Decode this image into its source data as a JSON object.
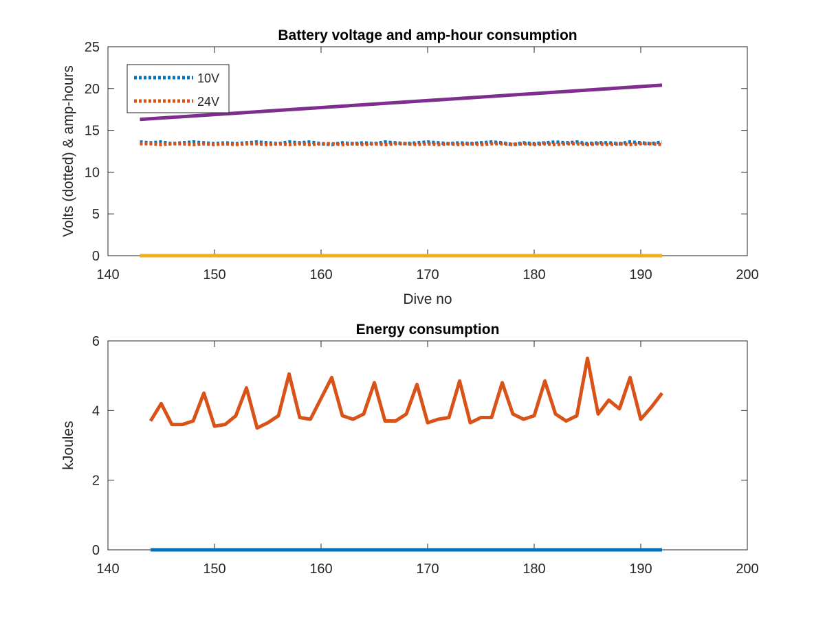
{
  "figure": {
    "background": "#ffffff"
  },
  "chart_data": [
    {
      "type": "line",
      "title": "Battery voltage and amp-hour consumption",
      "xlabel": "Dive no",
      "ylabel": "Volts (dotted) & amp-hours",
      "xlim": [
        140,
        200
      ],
      "ylim": [
        0,
        25
      ],
      "xticks": [
        140,
        150,
        160,
        170,
        180,
        190,
        200
      ],
      "yticks": [
        0,
        5,
        10,
        15,
        20,
        25
      ],
      "grid": false,
      "legend": {
        "placement": "top-left",
        "entries": [
          "10V",
          "24V"
        ]
      },
      "series": [
        {
          "name": "10V",
          "color": "#0072BD",
          "style": "dotted",
          "x": [
            143,
            144,
            145,
            146,
            147,
            148,
            149,
            150,
            151,
            152,
            153,
            154,
            155,
            156,
            157,
            158,
            159,
            160,
            161,
            162,
            163,
            164,
            165,
            166,
            167,
            168,
            169,
            170,
            171,
            172,
            173,
            174,
            175,
            176,
            177,
            178,
            179,
            180,
            181,
            182,
            183,
            184,
            185,
            186,
            187,
            188,
            189,
            190,
            191,
            192
          ],
          "y": [
            13.6,
            13.5,
            13.6,
            13.4,
            13.5,
            13.6,
            13.5,
            13.4,
            13.5,
            13.4,
            13.5,
            13.6,
            13.5,
            13.4,
            13.6,
            13.5,
            13.6,
            13.4,
            13.3,
            13.5,
            13.4,
            13.5,
            13.4,
            13.6,
            13.5,
            13.4,
            13.5,
            13.6,
            13.5,
            13.4,
            13.5,
            13.4,
            13.5,
            13.6,
            13.5,
            13.3,
            13.5,
            13.4,
            13.5,
            13.6,
            13.5,
            13.6,
            13.4,
            13.5,
            13.5,
            13.4,
            13.6,
            13.5,
            13.4,
            13.6
          ]
        },
        {
          "name": "24V",
          "color": "#D95319",
          "style": "dotted",
          "x": [
            143,
            144,
            145,
            146,
            147,
            148,
            149,
            150,
            151,
            152,
            153,
            154,
            155,
            156,
            157,
            158,
            159,
            160,
            161,
            162,
            163,
            164,
            165,
            166,
            167,
            168,
            169,
            170,
            171,
            172,
            173,
            174,
            175,
            176,
            177,
            178,
            179,
            180,
            181,
            182,
            183,
            184,
            185,
            186,
            187,
            188,
            189,
            190,
            191,
            192
          ],
          "y": [
            13.4,
            13.4,
            13.3,
            13.4,
            13.4,
            13.3,
            13.4,
            13.3,
            13.4,
            13.3,
            13.4,
            13.4,
            13.3,
            13.4,
            13.3,
            13.4,
            13.3,
            13.4,
            13.4,
            13.3,
            13.4,
            13.3,
            13.4,
            13.3,
            13.4,
            13.4,
            13.3,
            13.4,
            13.3,
            13.4,
            13.3,
            13.4,
            13.3,
            13.4,
            13.4,
            13.3,
            13.4,
            13.3,
            13.4,
            13.3,
            13.4,
            13.4,
            13.3,
            13.4,
            13.3,
            13.4,
            13.3,
            13.4,
            13.4,
            13.3
          ]
        },
        {
          "color": "#EDB120",
          "style": "solid",
          "x": [
            143,
            192
          ],
          "y": [
            0,
            0
          ]
        },
        {
          "color": "#7E2F8E",
          "style": "solid",
          "x": [
            143,
            192
          ],
          "y": [
            16.3,
            20.4
          ]
        }
      ]
    },
    {
      "type": "line",
      "title": "Energy consumption",
      "xlabel": "",
      "ylabel": "kJoules",
      "xlim": [
        140,
        200
      ],
      "ylim": [
        0,
        6
      ],
      "xticks": [
        140,
        150,
        160,
        170,
        180,
        190,
        200
      ],
      "yticks": [
        0,
        2,
        4,
        6
      ],
      "grid": false,
      "series": [
        {
          "color": "#D95319",
          "style": "solid",
          "x": [
            144,
            145,
            146,
            147,
            148,
            149,
            150,
            151,
            152,
            153,
            154,
            155,
            156,
            157,
            158,
            159,
            160,
            161,
            162,
            163,
            164,
            165,
            166,
            167,
            168,
            169,
            170,
            171,
            172,
            173,
            174,
            175,
            176,
            177,
            178,
            179,
            180,
            181,
            182,
            183,
            184,
            185,
            186,
            187,
            188,
            189,
            190,
            191,
            192
          ],
          "y": [
            3.7,
            4.2,
            3.6,
            3.6,
            3.7,
            4.5,
            3.55,
            3.6,
            3.85,
            4.65,
            3.5,
            3.65,
            3.85,
            5.05,
            3.8,
            3.75,
            4.35,
            4.95,
            3.85,
            3.75,
            3.9,
            4.8,
            3.7,
            3.7,
            3.9,
            4.75,
            3.65,
            3.75,
            3.8,
            4.85,
            3.65,
            3.8,
            3.8,
            4.8,
            3.9,
            3.75,
            3.85,
            4.85,
            3.9,
            3.7,
            3.85,
            5.5,
            3.9,
            4.3,
            4.05,
            4.95,
            3.75,
            4.1,
            4.5
          ]
        },
        {
          "color": "#0072BD",
          "style": "solid",
          "x": [
            144,
            192
          ],
          "y": [
            0,
            0
          ]
        }
      ]
    }
  ]
}
